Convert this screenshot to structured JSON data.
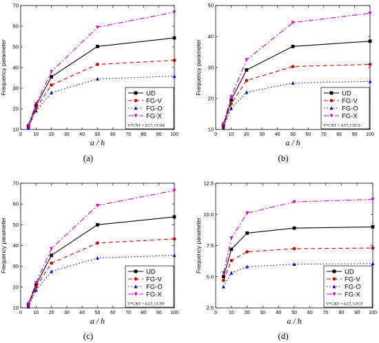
{
  "chart_data": [
    {
      "type": "line",
      "panel_label": "(a)",
      "xlabel": "a / h",
      "ylabel": "Frequency parameter",
      "x": [
        5,
        10,
        20,
        50,
        100
      ],
      "xticks": [
        "0",
        "10",
        "20",
        "30",
        "40",
        "50",
        "60",
        "70",
        "80",
        "90",
        "100"
      ],
      "yticks": [
        "10",
        "20",
        "30",
        "40",
        "50",
        "60",
        "70"
      ],
      "xlim": [
        0,
        100
      ],
      "ylim": [
        10,
        70
      ],
      "legend_position": "bottom-right",
      "legend_note": "V*CNT = 0.17, CCSS",
      "series": [
        {
          "name": "UD",
          "values": [
            11.5,
            21.5,
            35.5,
            50.2,
            54.3
          ]
        },
        {
          "name": "FG-V",
          "values": [
            11.0,
            20.3,
            31.5,
            41.5,
            43.5
          ]
        },
        {
          "name": "FG-O",
          "values": [
            10.7,
            19.0,
            27.8,
            34.5,
            35.8
          ]
        },
        {
          "name": "FG-X",
          "values": [
            12.0,
            22.5,
            38.0,
            59.5,
            66.8
          ]
        }
      ]
    },
    {
      "type": "line",
      "panel_label": "(b)",
      "xlabel": "a / h",
      "ylabel": "Frequency parameter",
      "x": [
        5,
        10,
        20,
        50,
        100
      ],
      "xticks": [
        "0",
        "10",
        "20",
        "30",
        "40",
        "50",
        "60",
        "70",
        "80",
        "90",
        "100"
      ],
      "yticks": [
        "10",
        "20",
        "30",
        "40",
        "50"
      ],
      "xlim": [
        0,
        100
      ],
      "ylim": [
        10,
        50
      ],
      "legend_position": "bottom-right",
      "legend_note": "V*CNT = 0.17, CSCS",
      "series": [
        {
          "name": "UD",
          "values": [
            11.2,
            19.5,
            29.2,
            36.8,
            38.5
          ]
        },
        {
          "name": "FG-V",
          "values": [
            10.8,
            18.3,
            25.8,
            30.3,
            31.0
          ]
        },
        {
          "name": "FG-O",
          "values": [
            10.5,
            16.8,
            22.0,
            25.0,
            25.5
          ]
        },
        {
          "name": "FG-X",
          "values": [
            11.8,
            20.5,
            32.5,
            44.5,
            47.5
          ]
        }
      ]
    },
    {
      "type": "line",
      "panel_label": "(c)",
      "xlabel": "a / h",
      "ylabel": "Frequency parameter",
      "x": [
        5,
        10,
        20,
        50,
        100
      ],
      "xticks": [
        "0",
        "10",
        "20",
        "30",
        "40",
        "50",
        "60",
        "70",
        "80",
        "90",
        "100"
      ],
      "yticks": [
        "10",
        "20",
        "30",
        "40",
        "50",
        "60",
        "70"
      ],
      "xlim": [
        0,
        100
      ],
      "ylim": [
        10,
        70
      ],
      "legend_position": "bottom-right",
      "legend_note": "V*CNT = 0.17, CCFF",
      "series": [
        {
          "name": "UD",
          "values": [
            11.5,
            21.0,
            35.3,
            50.0,
            53.8
          ]
        },
        {
          "name": "FG-V",
          "values": [
            11.0,
            20.0,
            31.5,
            41.2,
            43.2
          ]
        },
        {
          "name": "FG-O",
          "values": [
            10.5,
            18.5,
            27.5,
            34.0,
            35.3
          ]
        },
        {
          "name": "FG-X",
          "values": [
            12.0,
            22.0,
            38.5,
            59.3,
            66.5
          ]
        }
      ]
    },
    {
      "type": "line",
      "panel_label": "(d)",
      "xlabel": "a / h",
      "ylabel": "Frequency parameter",
      "x": [
        5,
        10,
        20,
        50,
        100
      ],
      "xticks": [
        "0",
        "10",
        "20",
        "30",
        "40",
        "50",
        "60",
        "70",
        "80",
        "90",
        "100"
      ],
      "yticks": [
        "2.5",
        "5.0",
        "7.5",
        "10.0",
        "12.5"
      ],
      "xlim": [
        0,
        100
      ],
      "ylim": [
        2.5,
        12.5
      ],
      "legend_position": "bottom-right",
      "legend_note": "V*CNT = 0.17, CFCF",
      "series": [
        {
          "name": "UD",
          "values": [
            5.0,
            7.2,
            8.5,
            8.9,
            9.0
          ]
        },
        {
          "name": "FG-V",
          "values": [
            4.7,
            6.3,
            7.0,
            7.25,
            7.3
          ]
        },
        {
          "name": "FG-O",
          "values": [
            4.2,
            5.3,
            5.8,
            6.0,
            6.05
          ]
        },
        {
          "name": "FG-X",
          "values": [
            5.3,
            8.1,
            10.1,
            11.0,
            11.2
          ]
        }
      ]
    }
  ],
  "styles": {
    "UD": {
      "color": "#000000",
      "dash": "",
      "marker": "square"
    },
    "FG-V": {
      "color": "#cc0000",
      "dash": "6,4",
      "marker": "circle"
    },
    "FG-O": {
      "color": "#0000cc",
      "dash": "1.5,3",
      "marker": "triangle"
    },
    "FG-X": {
      "color": "#cc00cc",
      "dash": "8,3,2,3",
      "marker": "triangle-down"
    }
  }
}
